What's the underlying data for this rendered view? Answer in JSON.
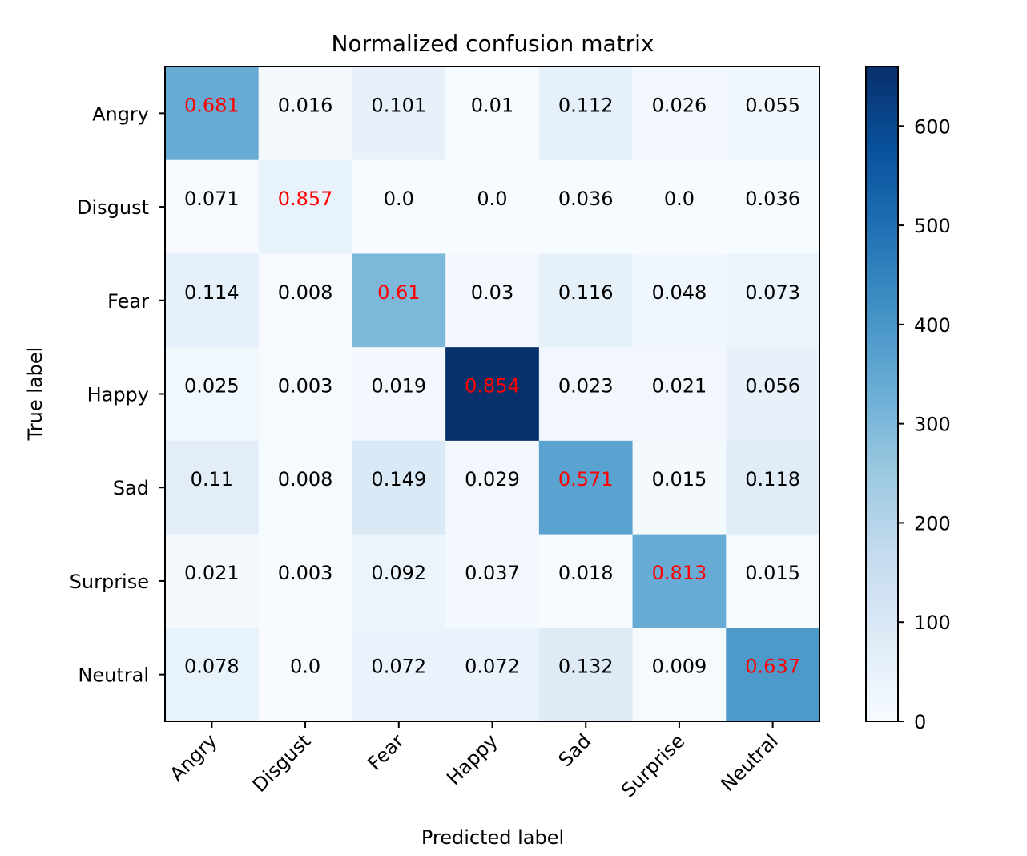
{
  "chart_data": {
    "type": "heatmap",
    "title": "Normalized confusion matrix",
    "xlabel": "Predicted label",
    "ylabel": "True label",
    "x_categories": [
      "Angry",
      "Disgust",
      "Fear",
      "Happy",
      "Sad",
      "Surprise",
      "Neutral"
    ],
    "y_categories": [
      "Angry",
      "Disgust",
      "Fear",
      "Happy",
      "Sad",
      "Surprise",
      "Neutral"
    ],
    "values": [
      [
        "0.681",
        "0.016",
        "0.101",
        "0.01",
        "0.112",
        "0.026",
        "0.055"
      ],
      [
        "0.071",
        "0.857",
        "0.0",
        "0.0",
        "0.036",
        "0.0",
        "0.036"
      ],
      [
        "0.114",
        "0.008",
        "0.61",
        "0.03",
        "0.116",
        "0.048",
        "0.073"
      ],
      [
        "0.025",
        "0.003",
        "0.019",
        "0.854",
        "0.023",
        "0.021",
        "0.056"
      ],
      [
        "0.11",
        "0.008",
        "0.149",
        "0.029",
        "0.571",
        "0.015",
        "0.118"
      ],
      [
        "0.021",
        "0.003",
        "0.092",
        "0.037",
        "0.018",
        "0.813",
        "0.015"
      ],
      [
        "0.078",
        "0.0",
        "0.072",
        "0.072",
        "0.132",
        "0.009",
        "0.637"
      ]
    ],
    "counts_estimate": [
      [
        338,
        8,
        50,
        5,
        56,
        13,
        27
      ],
      [
        4,
        48,
        0,
        0,
        2,
        0,
        2
      ],
      [
        56,
        4,
        301,
        15,
        57,
        24,
        36
      ],
      [
        22,
        3,
        17,
        660,
        21,
        19,
        50
      ],
      [
        70,
        5,
        95,
        19,
        364,
        10,
        75
      ],
      [
        9,
        1,
        38,
        15,
        7,
        337,
        6
      ],
      [
        48,
        0,
        44,
        44,
        81,
        6,
        391
      ]
    ],
    "colormap": "Blues",
    "colorbar": {
      "range": [
        0,
        660
      ],
      "ticks": [
        0,
        100,
        200,
        300,
        400,
        500,
        600
      ]
    },
    "diagonal_text_color": "#ff0000",
    "offdiagonal_text_color": "#000000"
  }
}
